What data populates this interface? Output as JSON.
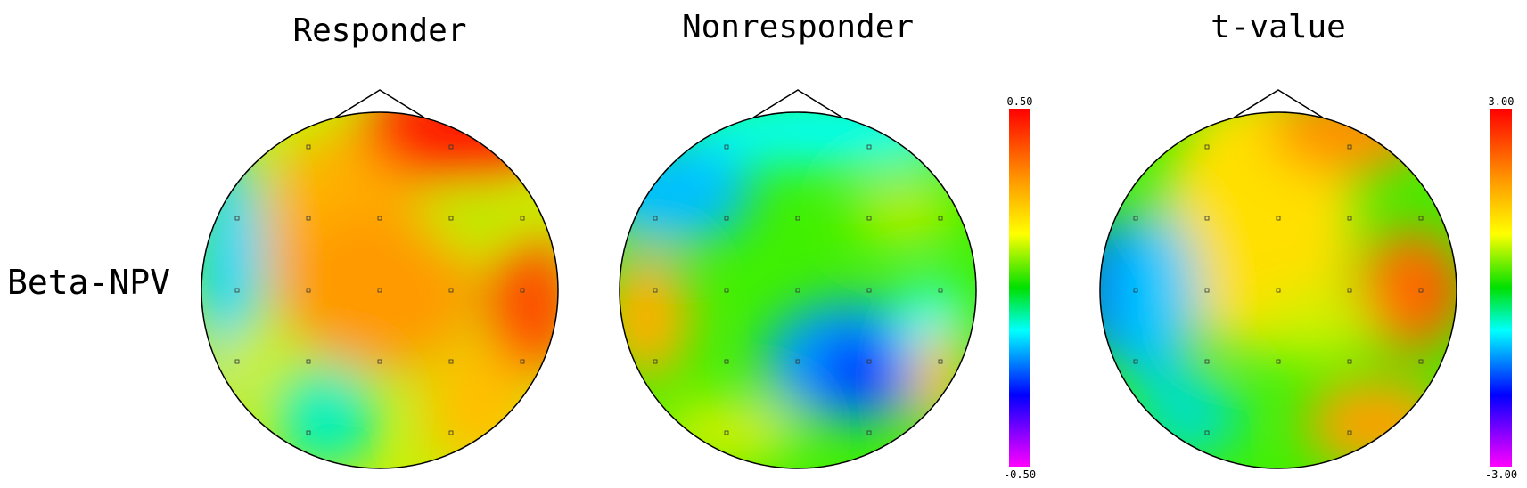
{
  "panels": [
    {
      "title": "Responder"
    },
    {
      "title": "Nonresponder"
    },
    {
      "title": "t-value"
    }
  ],
  "row_label": "Beta-NPV",
  "colorbars": [
    {
      "max_label": "0.50",
      "min_label": "-0.50"
    },
    {
      "max_label": "3.00",
      "min_label": "-3.00"
    }
  ]
}
